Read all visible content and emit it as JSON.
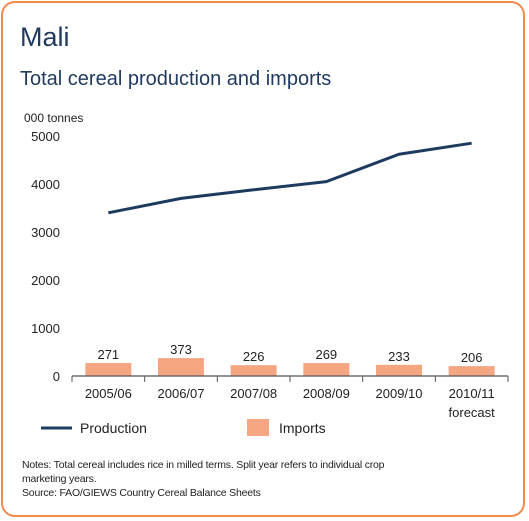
{
  "colors": {
    "production": "#1f3a5f",
    "imports": "#f4a582",
    "border": "#f08a4b",
    "axis": "#555555"
  },
  "country": "Mali",
  "chart_data": {
    "type": "bar",
    "title": "Total cereal production and imports",
    "ylabel": "000 tonnes",
    "xlabel": "",
    "ylim": [
      0,
      5000
    ],
    "yticks": [
      0,
      1000,
      2000,
      3000,
      4000,
      5000
    ],
    "categories": [
      [
        "2005/06"
      ],
      [
        "2006/07"
      ],
      [
        "2007/08"
      ],
      [
        "2008/09"
      ],
      [
        "2009/10"
      ],
      [
        "2010/11",
        "forecast"
      ]
    ],
    "series": [
      {
        "name": "Production",
        "type": "line",
        "values": [
          3400,
          3700,
          3880,
          4050,
          4620,
          4850
        ]
      },
      {
        "name": "Imports",
        "type": "bar",
        "values": [
          271,
          373,
          226,
          269,
          233,
          206
        ]
      }
    ],
    "legend": "bottom"
  },
  "notes": {
    "line1": "Notes: Total cereal includes rice in milled terms. Split year refers to individual crop",
    "line2": "marketing years.",
    "source": "Source: FAO/GIEWS Country Cereal Balance Sheets"
  }
}
